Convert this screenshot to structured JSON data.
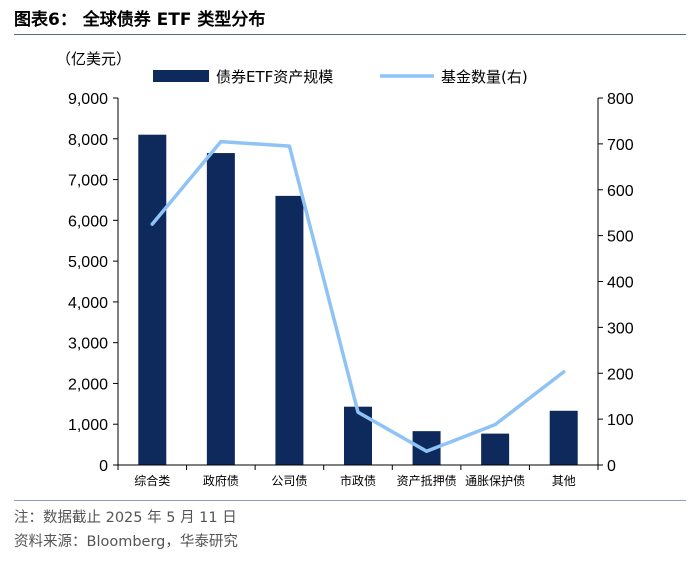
{
  "header": {
    "title": "图表6：  全球债券 ETF 类型分布"
  },
  "chart_data": {
    "type": "bar+line",
    "unit_label": "（亿美元）",
    "categories": [
      "综合类",
      "政府债",
      "公司债",
      "市政债",
      "资产抵押债",
      "通胀保护债",
      "其他"
    ],
    "series": [
      {
        "name": "债券ETF资产规模",
        "type": "bar",
        "axis": "left",
        "values": [
          8100,
          7650,
          6600,
          1430,
          830,
          770,
          1330
        ]
      },
      {
        "name": "基金数量(右)",
        "type": "line",
        "axis": "right",
        "values": [
          525,
          705,
          695,
          115,
          30,
          88,
          203
        ]
      }
    ],
    "y_left": {
      "range": [
        0,
        9000
      ],
      "ticks": [
        "0",
        "1,000",
        "2,000",
        "3,000",
        "4,000",
        "5,000",
        "6,000",
        "7,000",
        "8,000",
        "9,000"
      ]
    },
    "y_right": {
      "range": [
        0,
        800
      ],
      "ticks": [
        "0",
        "100",
        "200",
        "300",
        "400",
        "500",
        "600",
        "700",
        "800"
      ]
    },
    "grid": false,
    "legend_position": "top",
    "colors": {
      "bar": "#0e2a5c",
      "line": "#8fc3f5",
      "axis": "#000000"
    }
  },
  "footer": {
    "note": "注：数据截止 2025 年 5 月 11 日",
    "source": "资料来源：Bloomberg，华泰研究"
  }
}
